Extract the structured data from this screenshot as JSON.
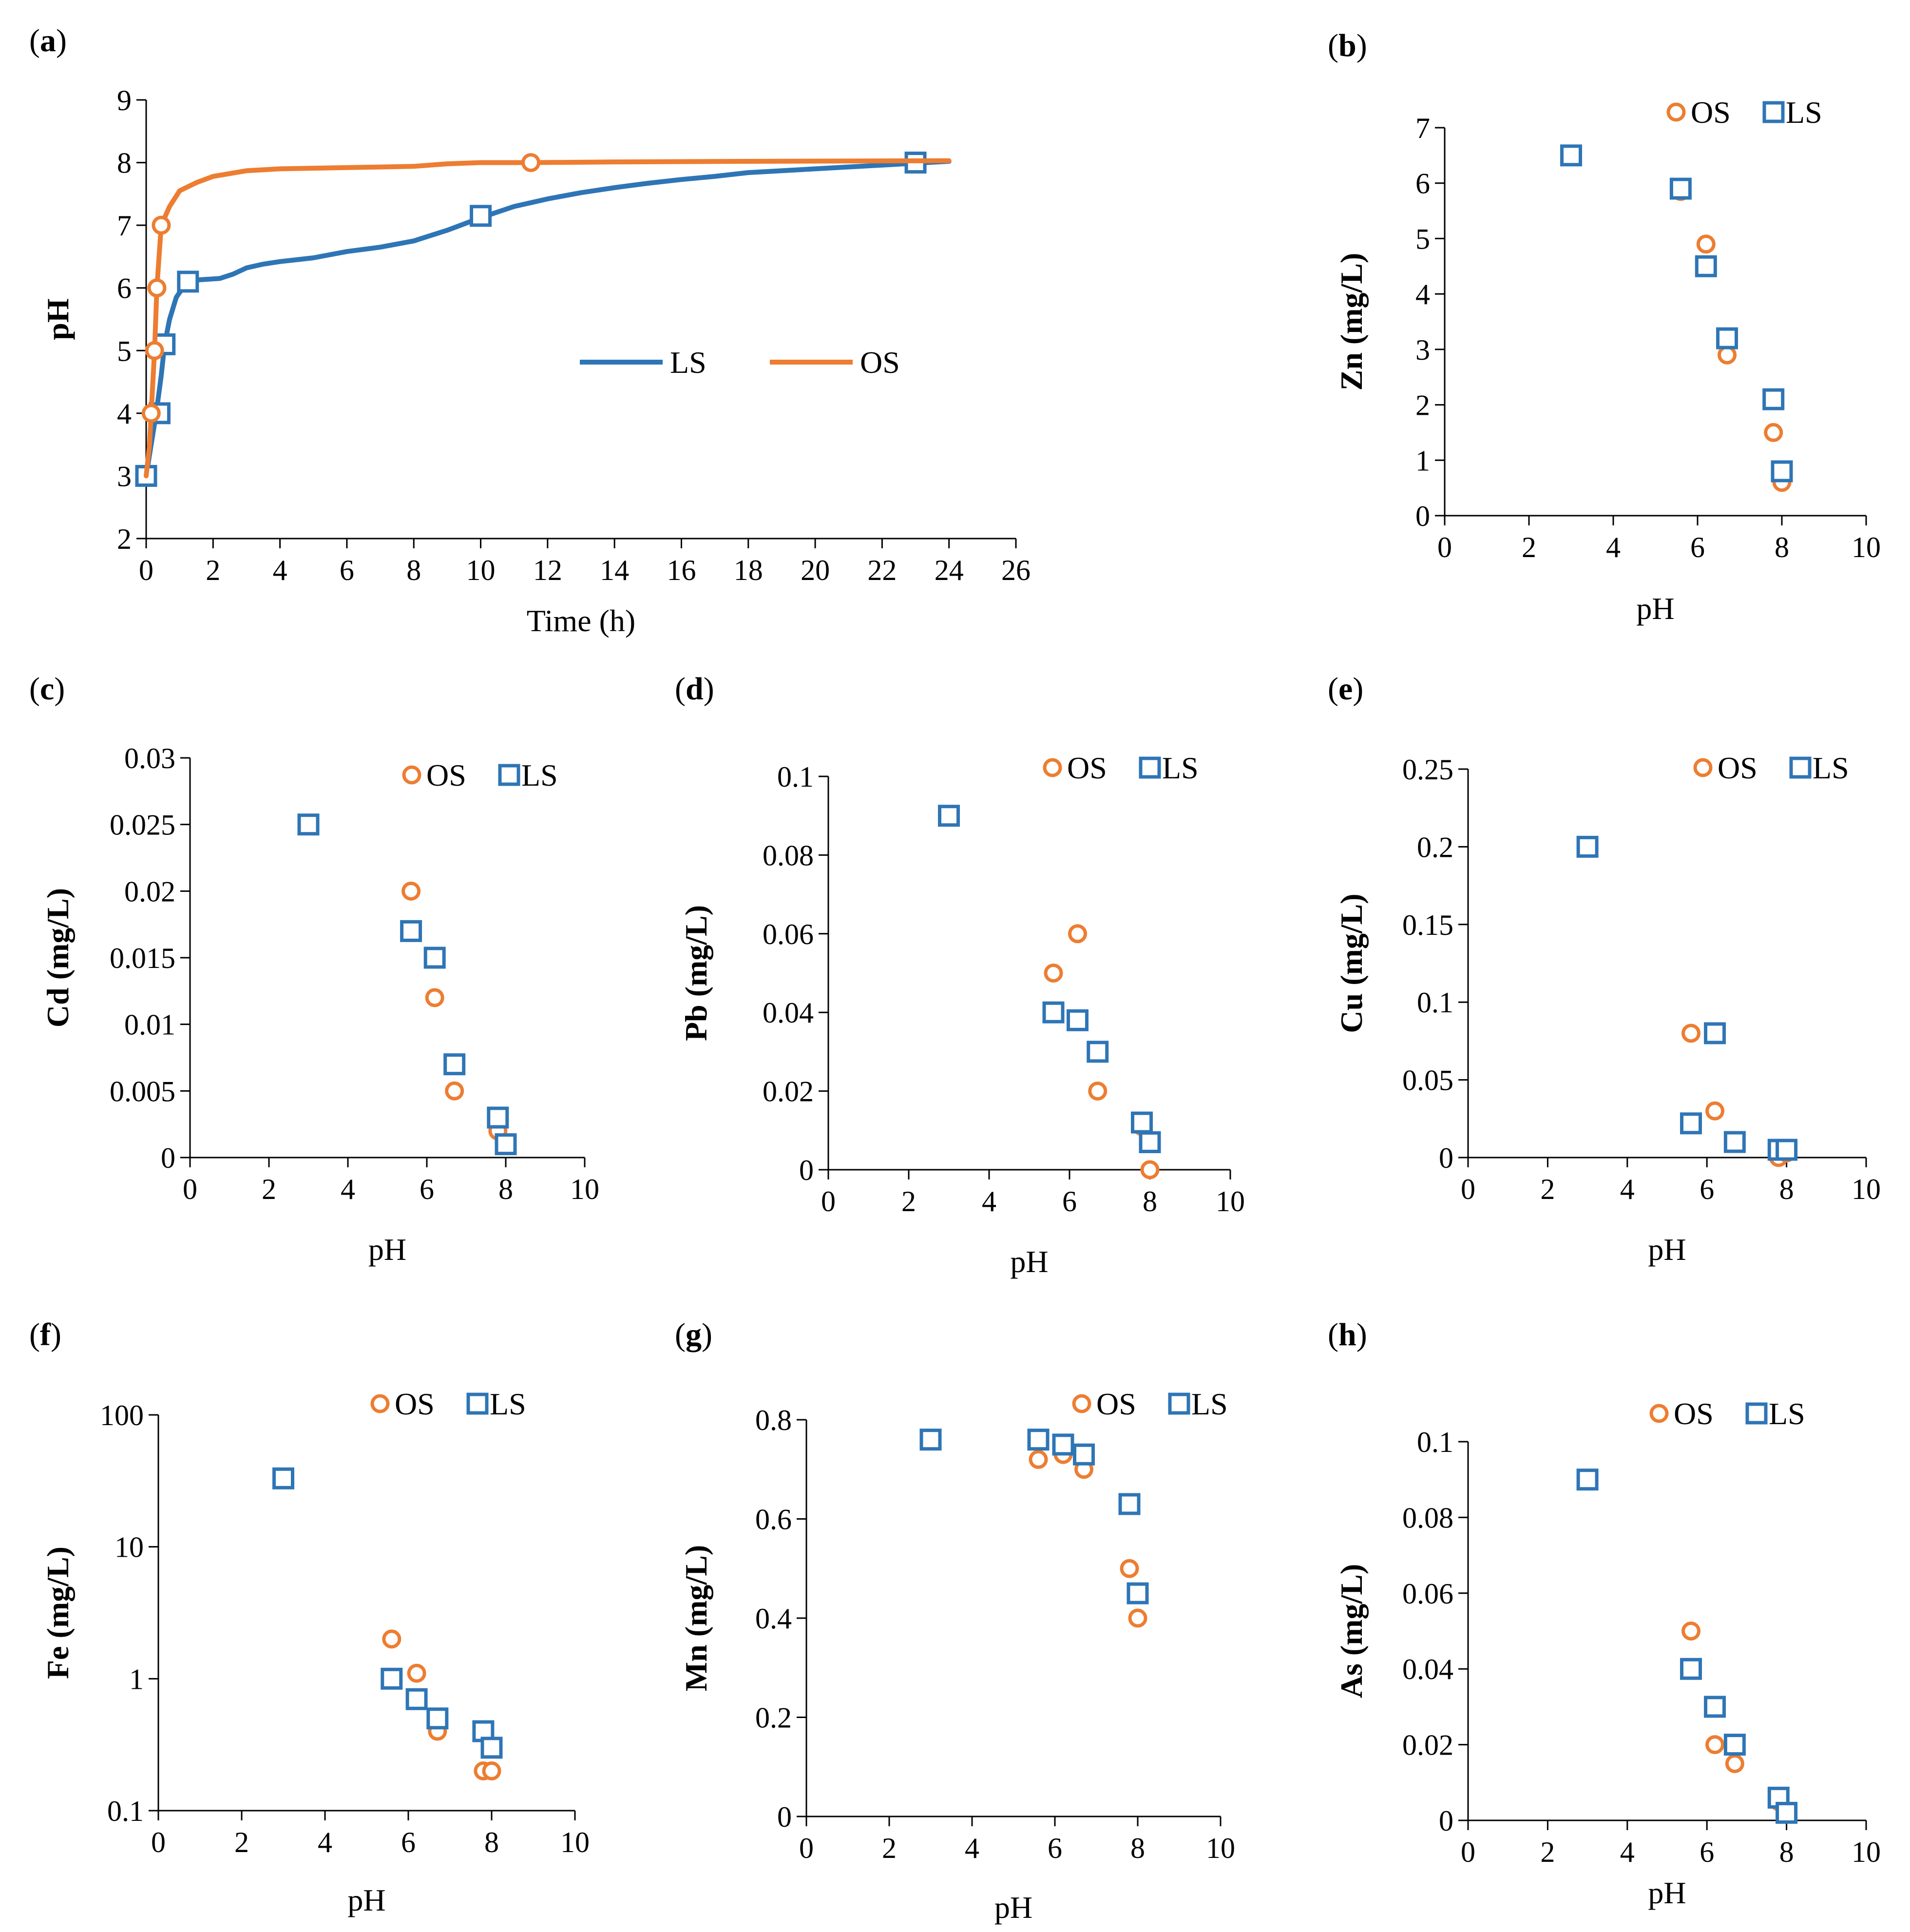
{
  "colors": {
    "OS": "#ED7D31",
    "LS": "#2E75B6",
    "axis": "#000000"
  },
  "chart_data": [
    {
      "id": "a",
      "letter": "a",
      "type": "line",
      "xlabel": "Time (h)",
      "ylabel": "pH",
      "xlim": [
        0,
        26
      ],
      "ylim": [
        2,
        9
      ],
      "xstep": 2,
      "ystep": 1,
      "series": [
        {
          "name": "LS",
          "curve": [
            [
              0,
              3
            ],
            [
              0.15,
              3.5
            ],
            [
              0.3,
              4
            ],
            [
              0.45,
              4.6
            ],
            [
              0.55,
              5.1
            ],
            [
              0.7,
              5.5
            ],
            [
              0.9,
              5.85
            ],
            [
              1.2,
              6.08
            ],
            [
              1.6,
              6.13
            ],
            [
              2.2,
              6.15
            ],
            [
              2.6,
              6.22
            ],
            [
              3,
              6.32
            ],
            [
              3.5,
              6.38
            ],
            [
              4,
              6.42
            ],
            [
              4.5,
              6.45
            ],
            [
              5,
              6.48
            ],
            [
              6,
              6.58
            ],
            [
              7,
              6.65
            ],
            [
              8,
              6.75
            ],
            [
              9,
              6.92
            ],
            [
              10,
              7.12
            ],
            [
              11,
              7.3
            ],
            [
              12,
              7.42
            ],
            [
              13,
              7.52
            ],
            [
              14,
              7.6
            ],
            [
              15,
              7.67
            ],
            [
              16,
              7.73
            ],
            [
              17,
              7.78
            ],
            [
              18,
              7.84
            ],
            [
              20,
              7.9
            ],
            [
              22,
              7.96
            ],
            [
              23,
              7.99
            ],
            [
              24,
              8.02
            ]
          ],
          "markers": [
            [
              0,
              3
            ],
            [
              0.4,
              4
            ],
            [
              0.55,
              5.1
            ],
            [
              1.25,
              6.1
            ],
            [
              10,
              7.15
            ],
            [
              23,
              8
            ]
          ]
        },
        {
          "name": "OS",
          "curve": [
            [
              0,
              3
            ],
            [
              0.1,
              3.5
            ],
            [
              0.15,
              4
            ],
            [
              0.25,
              5
            ],
            [
              0.32,
              6
            ],
            [
              0.45,
              7
            ],
            [
              0.7,
              7.3
            ],
            [
              1,
              7.55
            ],
            [
              1.5,
              7.68
            ],
            [
              2,
              7.78
            ],
            [
              3,
              7.87
            ],
            [
              4,
              7.9
            ],
            [
              6,
              7.92
            ],
            [
              8,
              7.94
            ],
            [
              9,
              7.98
            ],
            [
              10,
              8
            ],
            [
              11.5,
              8
            ],
            [
              14,
              8.01
            ],
            [
              18,
              8.02
            ],
            [
              24,
              8.03
            ]
          ],
          "markers": [
            [
              0.15,
              4
            ],
            [
              0.25,
              5
            ],
            [
              0.32,
              6
            ],
            [
              0.45,
              7
            ],
            [
              11.5,
              8
            ]
          ]
        }
      ]
    },
    {
      "id": "b",
      "letter": "b",
      "type": "scatter",
      "xlabel": "pH",
      "ylabel": "Zn (mg/L)",
      "xlim": [
        0,
        10
      ],
      "ylim": [
        0,
        7
      ],
      "xstep": 2,
      "ystep": 1,
      "series": [
        {
          "name": "OS",
          "points": [
            [
              3,
              6.5
            ],
            [
              5.6,
              5.85
            ],
            [
              6.2,
              4.9
            ],
            [
              6.7,
              2.9
            ],
            [
              7.8,
              1.5
            ],
            [
              8,
              0.6
            ]
          ]
        },
        {
          "name": "LS",
          "points": [
            [
              3,
              6.5
            ],
            [
              5.6,
              5.9
            ],
            [
              6.2,
              4.5
            ],
            [
              6.7,
              3.2
            ],
            [
              7.8,
              2.1
            ],
            [
              8,
              0.8
            ]
          ]
        }
      ]
    },
    {
      "id": "c",
      "letter": "c",
      "type": "scatter",
      "xlabel": "pH",
      "ylabel": "Cd (mg/L)",
      "xlim": [
        0,
        10
      ],
      "ylim": [
        0,
        0.03
      ],
      "xstep": 2,
      "ystep": 0.005,
      "yticks": [
        "0",
        "0.005",
        "0.01",
        "0.015",
        "0.02",
        "0.025",
        "0.03"
      ],
      "series": [
        {
          "name": "OS",
          "points": [
            [
              3,
              0.025
            ],
            [
              5.6,
              0.02
            ],
            [
              6.2,
              0.012
            ],
            [
              6.7,
              0.005
            ],
            [
              7.8,
              0.002
            ],
            [
              8,
              0.001
            ]
          ]
        },
        {
          "name": "LS",
          "points": [
            [
              3,
              0.025
            ],
            [
              5.6,
              0.017
            ],
            [
              6.2,
              0.015
            ],
            [
              6.7,
              0.007
            ],
            [
              7.8,
              0.003
            ],
            [
              8,
              0.001
            ]
          ]
        }
      ]
    },
    {
      "id": "d",
      "letter": "d",
      "type": "scatter",
      "xlabel": "pH",
      "ylabel": "Pb (mg/L)",
      "xlim": [
        0,
        10
      ],
      "ylim": [
        0,
        0.1
      ],
      "xstep": 2,
      "ystep": 0.02,
      "yticks": [
        "0",
        "0.02",
        "0.04",
        "0.06",
        "0.08",
        "0.1"
      ],
      "series": [
        {
          "name": "OS",
          "points": [
            [
              3,
              0.09
            ],
            [
              5.6,
              0.05
            ],
            [
              6.2,
              0.06
            ],
            [
              6.7,
              0.02
            ],
            [
              7.8,
              0.011
            ],
            [
              8,
              0
            ]
          ]
        },
        {
          "name": "LS",
          "points": [
            [
              3,
              0.09
            ],
            [
              5.6,
              0.04
            ],
            [
              6.2,
              0.038
            ],
            [
              6.7,
              0.03
            ],
            [
              7.8,
              0.012
            ],
            [
              8,
              0.007
            ]
          ]
        }
      ]
    },
    {
      "id": "e",
      "letter": "e",
      "type": "scatter",
      "xlabel": "pH",
      "ylabel": "Cu (mg/L)",
      "xlim": [
        0,
        10
      ],
      "ylim": [
        0,
        0.25
      ],
      "xstep": 2,
      "ystep": 0.05,
      "yticks": [
        "0",
        "0.05",
        "0.1",
        "0.15",
        "0.2",
        "0.25"
      ],
      "series": [
        {
          "name": "OS",
          "points": [
            [
              3,
              0.2
            ],
            [
              5.6,
              0.08
            ],
            [
              6.2,
              0.03
            ],
            [
              6.7,
              0.01
            ],
            [
              7.8,
              0
            ],
            [
              8,
              0.003
            ]
          ]
        },
        {
          "name": "LS",
          "points": [
            [
              3,
              0.2
            ],
            [
              5.6,
              0.022
            ],
            [
              6.2,
              0.08
            ],
            [
              6.7,
              0.01
            ],
            [
              7.8,
              0.005
            ],
            [
              8,
              0.005
            ]
          ]
        }
      ]
    },
    {
      "id": "f",
      "letter": "f",
      "type": "scatter",
      "xlabel": "pH",
      "ylabel": "Fe (mg/L)",
      "xlim": [
        0,
        10
      ],
      "ylim": [
        0.1,
        100
      ],
      "yscale": "log",
      "xstep": 2,
      "yticks": [
        "0.1",
        "1",
        "10",
        "100"
      ],
      "series": [
        {
          "name": "OS",
          "points": [
            [
              3,
              33
            ],
            [
              5.6,
              2
            ],
            [
              6.2,
              1.1
            ],
            [
              6.7,
              0.4
            ],
            [
              7.8,
              0.2
            ],
            [
              8,
              0.2
            ]
          ]
        },
        {
          "name": "LS",
          "points": [
            [
              3,
              33
            ],
            [
              5.6,
              1
            ],
            [
              6.2,
              0.7
            ],
            [
              6.7,
              0.5
            ],
            [
              7.8,
              0.4
            ],
            [
              8,
              0.3
            ]
          ]
        }
      ]
    },
    {
      "id": "g",
      "letter": "g",
      "type": "scatter",
      "xlabel": "pH",
      "ylabel": "Mn (mg/L)",
      "xlim": [
        0,
        10
      ],
      "ylim": [
        0,
        0.8
      ],
      "xstep": 2,
      "ystep": 0.2,
      "yticks": [
        "0",
        "0.2",
        "0.4",
        "0.6",
        "0.8"
      ],
      "series": [
        {
          "name": "OS",
          "points": [
            [
              3,
              0.76
            ],
            [
              5.6,
              0.72
            ],
            [
              6.2,
              0.73
            ],
            [
              6.7,
              0.7
            ],
            [
              7.8,
              0.5
            ],
            [
              8,
              0.4
            ]
          ]
        },
        {
          "name": "LS",
          "points": [
            [
              3,
              0.76
            ],
            [
              5.6,
              0.76
            ],
            [
              6.2,
              0.75
            ],
            [
              6.7,
              0.73
            ],
            [
              7.8,
              0.63
            ],
            [
              8,
              0.45
            ]
          ]
        }
      ]
    },
    {
      "id": "h",
      "letter": "h",
      "type": "scatter",
      "xlabel": "pH",
      "ylabel": "As (mg/L)",
      "xlim": [
        0,
        10
      ],
      "ylim": [
        0,
        0.1
      ],
      "xstep": 2,
      "ystep": 0.02,
      "yticks": [
        "0",
        "0.02",
        "0.04",
        "0.06",
        "0.08",
        "0.1"
      ],
      "series": [
        {
          "name": "OS",
          "points": [
            [
              3,
              0.09
            ],
            [
              5.6,
              0.05
            ],
            [
              6.2,
              0.02
            ],
            [
              6.7,
              0.015
            ],
            [
              7.8,
              0.005
            ],
            [
              8,
              0.002
            ]
          ]
        },
        {
          "name": "LS",
          "points": [
            [
              3,
              0.09
            ],
            [
              5.6,
              0.04
            ],
            [
              6.2,
              0.03
            ],
            [
              6.7,
              0.02
            ],
            [
              7.8,
              0.006
            ],
            [
              8,
              0.002
            ]
          ]
        }
      ]
    }
  ]
}
